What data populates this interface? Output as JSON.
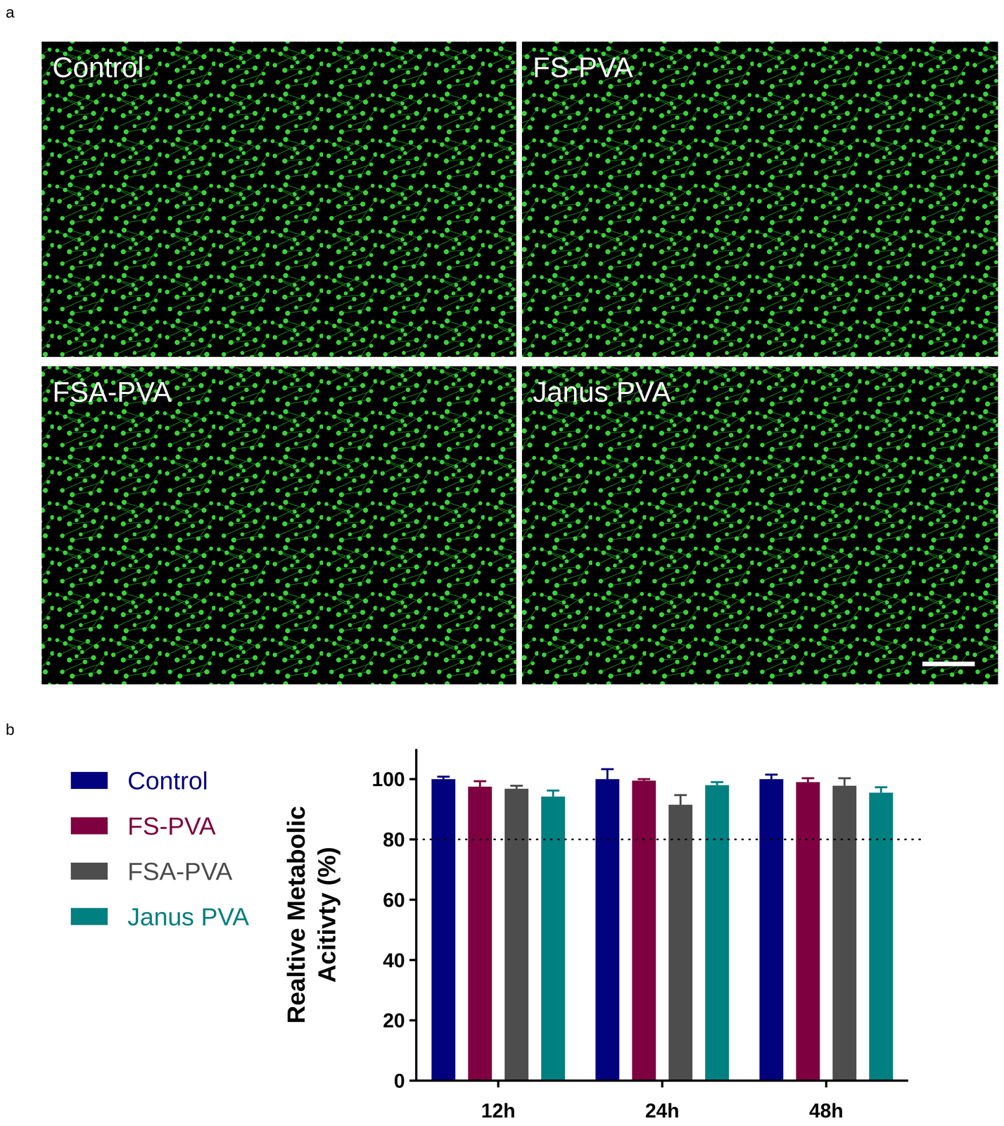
{
  "figure": {
    "panel_labels": [
      "a",
      "b"
    ],
    "images": [
      "Control",
      "FS-PVA",
      "FSA-PVA",
      "Janus PVA"
    ]
  },
  "chart_data": {
    "type": "bar",
    "y_label": "Realtive Metabolic Acitivty (%)",
    "categories": [
      "12h",
      "24h",
      "48h"
    ],
    "series": [
      {
        "name": "Control",
        "color": "#02027f",
        "values": [
          100,
          100,
          100
        ],
        "errors": [
          0.8,
          3.3,
          1.5
        ]
      },
      {
        "name": "FS-PVA",
        "color": "#7f0040",
        "values": [
          97.5,
          99.5,
          99
        ],
        "errors": [
          1.8,
          0.5,
          1.3
        ]
      },
      {
        "name": "FSA-PVA",
        "color": "#4d4d4d",
        "values": [
          96.8,
          91.5,
          97.8
        ],
        "errors": [
          1,
          3.2,
          2.5
        ]
      },
      {
        "name": "Janus PVA",
        "color": "#008080",
        "values": [
          94.2,
          98,
          95.5
        ],
        "errors": [
          2,
          1,
          1.8
        ]
      }
    ],
    "threshold": 80,
    "ylim": [
      0,
      110
    ],
    "yticks": [
      0,
      20,
      40,
      60,
      80,
      100
    ],
    "grid": false,
    "legend": "left"
  }
}
